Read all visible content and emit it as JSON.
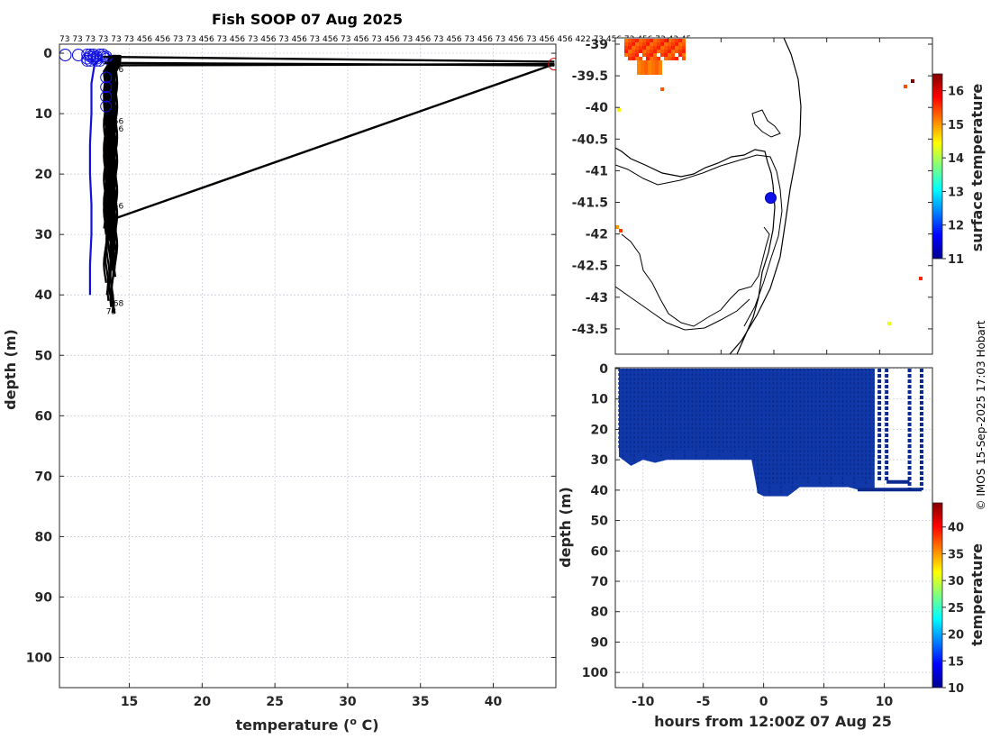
{
  "chart_data": [
    {
      "type": "line",
      "name": "profile",
      "title": "Fish SOOP 07 Aug 2025",
      "xlabel": "temperature (",
      "xlabel_sup": "o",
      "xlabel_end": " C)",
      "ylabel": "depth (m)",
      "xlim": [
        10.2,
        44.3
      ],
      "ylim": [
        105,
        -1.5
      ],
      "xticks": [
        15,
        20,
        25,
        30,
        35,
        40
      ],
      "yticks": [
        0,
        10,
        20,
        30,
        40,
        50,
        60,
        70,
        80,
        90,
        100
      ],
      "top_labels": "73 73 73 73 73 73 456 456 73 73 456 73 456 73 456 73 456 73 456 73 456 73 456 73 456 73 456 73 456 73 456 73 456 456 422 73 456 73 456 73 43 45",
      "profile_labels": [
        {
          "text": "56",
          "x": 13.9,
          "y": 3.1
        },
        {
          "text": "56",
          "x": 13.9,
          "y": 11.7
        },
        {
          "text": "56",
          "x": 13.9,
          "y": 13.0
        },
        {
          "text": "56",
          "x": 13.9,
          "y": 25.7
        },
        {
          "text": "73",
          "x": 13.5,
          "y": 33.0
        },
        {
          "text": "68",
          "x": 13.9,
          "y": 41.8
        },
        {
          "text": "73",
          "x": 13.4,
          "y": 43.2
        }
      ],
      "series": [
        {
          "name": "ref-profile",
          "color": "#1010e0",
          "x": [
            13.2,
            12.6,
            12.4,
            12.4,
            12.3,
            12.3,
            12.4,
            12.4,
            12.3,
            12.3
          ],
          "y": [
            0.4,
            2,
            5,
            10,
            15,
            20,
            25,
            30,
            35,
            40
          ]
        },
        {
          "name": "transect-upper",
          "color": "#000000",
          "x": [
            13.2,
            44.2
          ],
          "y": [
            0.6,
            1.4
          ]
        },
        {
          "name": "transect-mid",
          "color": "#000000",
          "x": [
            13.3,
            44.2
          ],
          "y": [
            1.6,
            2.0
          ]
        },
        {
          "name": "transect-low",
          "color": "#000000",
          "x": [
            13.6,
            44.2
          ],
          "y": [
            2.0,
            1.8
          ]
        },
        {
          "name": "transect-deep",
          "color": "#000000",
          "x": [
            13.6,
            44.2
          ],
          "y": [
            27.7,
            1.8
          ]
        }
      ],
      "markers": [
        {
          "name": "surface-blue",
          "x": 10.6,
          "y": 0.3,
          "color": "#1010e0"
        },
        {
          "name": "surface-blue-2",
          "x": 11.5,
          "y": 0.3,
          "color": "#1010e0"
        },
        {
          "name": "surface-red",
          "x": 44.2,
          "y": 1.8,
          "color": "#e00000"
        }
      ]
    },
    {
      "type": "heatmap",
      "name": "sst-map",
      "colorbar_label": "surface temperature",
      "clim": [
        11,
        16.5
      ],
      "colorbar_ticks": [
        11,
        12,
        13,
        14,
        15,
        16
      ],
      "ylim": [
        -43.9,
        -38.9
      ],
      "yticks": [
        -39,
        -39.5,
        -40,
        -40.5,
        -41,
        -41.5,
        -42,
        -42.5,
        -43,
        -43.5
      ],
      "vessel_position": {
        "lon_frac": 0.49,
        "lat": -41.43
      }
    },
    {
      "type": "scatter",
      "name": "time-depth",
      "xlabel": "hours from 12:00Z 07 Aug 25",
      "ylabel": "depth (m)",
      "xlim": [
        -12.3,
        14
      ],
      "ylim": [
        105,
        -0.3
      ],
      "xticks": [
        -10,
        -5,
        0,
        5,
        10
      ],
      "yticks": [
        0,
        10,
        20,
        30,
        40,
        50,
        60,
        70,
        80,
        90,
        100
      ],
      "colorbar_label": "temperature",
      "clim": [
        10,
        44.5
      ],
      "colorbar_ticks": [
        10,
        15,
        20,
        25,
        30,
        35,
        40
      ],
      "envelope": [
        {
          "t": -12,
          "d": 29
        },
        {
          "t": -11,
          "d": 32
        },
        {
          "t": -10,
          "d": 30
        },
        {
          "t": -9,
          "d": 31
        },
        {
          "t": -8,
          "d": 30
        },
        {
          "t": -7,
          "d": 30
        },
        {
          "t": -6,
          "d": 30
        },
        {
          "t": -5,
          "d": 30
        },
        {
          "t": -4,
          "d": 30
        },
        {
          "t": -3,
          "d": 30
        },
        {
          "t": -2,
          "d": 30
        },
        {
          "t": -1,
          "d": 30
        },
        {
          "t": -0.5,
          "d": 41
        },
        {
          "t": 0,
          "d": 42
        },
        {
          "t": 1,
          "d": 42
        },
        {
          "t": 2,
          "d": 42
        },
        {
          "t": 3,
          "d": 39
        },
        {
          "t": 4,
          "d": 39
        },
        {
          "t": 5,
          "d": 39
        },
        {
          "t": 6,
          "d": 39
        },
        {
          "t": 7,
          "d": 39
        },
        {
          "t": 8,
          "d": 40
        },
        {
          "t": 9,
          "d": 40
        },
        {
          "t": 10,
          "d": 37
        },
        {
          "t": 12,
          "d": 37
        },
        {
          "t": 13,
          "d": 40
        }
      ]
    }
  ],
  "credit": "© IMOS 15-Sep-2025 17:03 Hobart"
}
